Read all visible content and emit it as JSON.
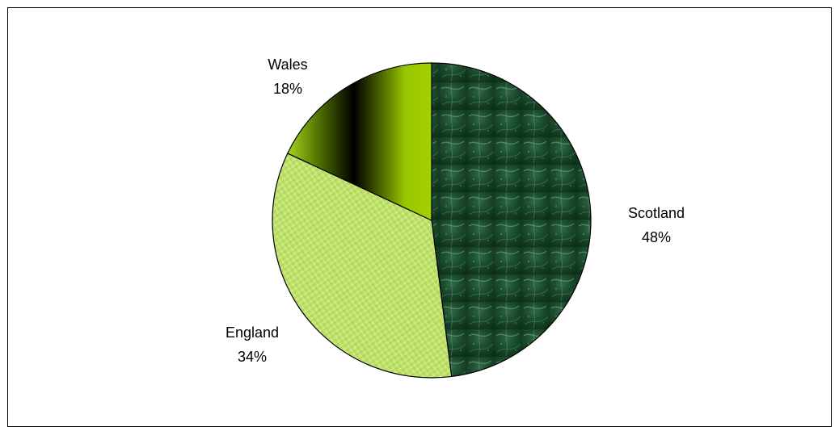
{
  "chart_data": {
    "type": "pie",
    "title": "",
    "slices": [
      {
        "label": "Scotland",
        "value": 48,
        "percent_label": "48%",
        "color": "#1d4b2d",
        "pattern": "dark green marble texture"
      },
      {
        "label": "England",
        "value": 34,
        "percent_label": "34%",
        "color": "#b9db63",
        "pattern": "light green diagonal hatch gradient"
      },
      {
        "label": "Wales",
        "value": 18,
        "percent_label": "18%",
        "color": "#8fbe00",
        "pattern": "vertical green-black gradient"
      }
    ],
    "legend": "none",
    "start_angle_deg": 0,
    "direction": "clockwise"
  }
}
